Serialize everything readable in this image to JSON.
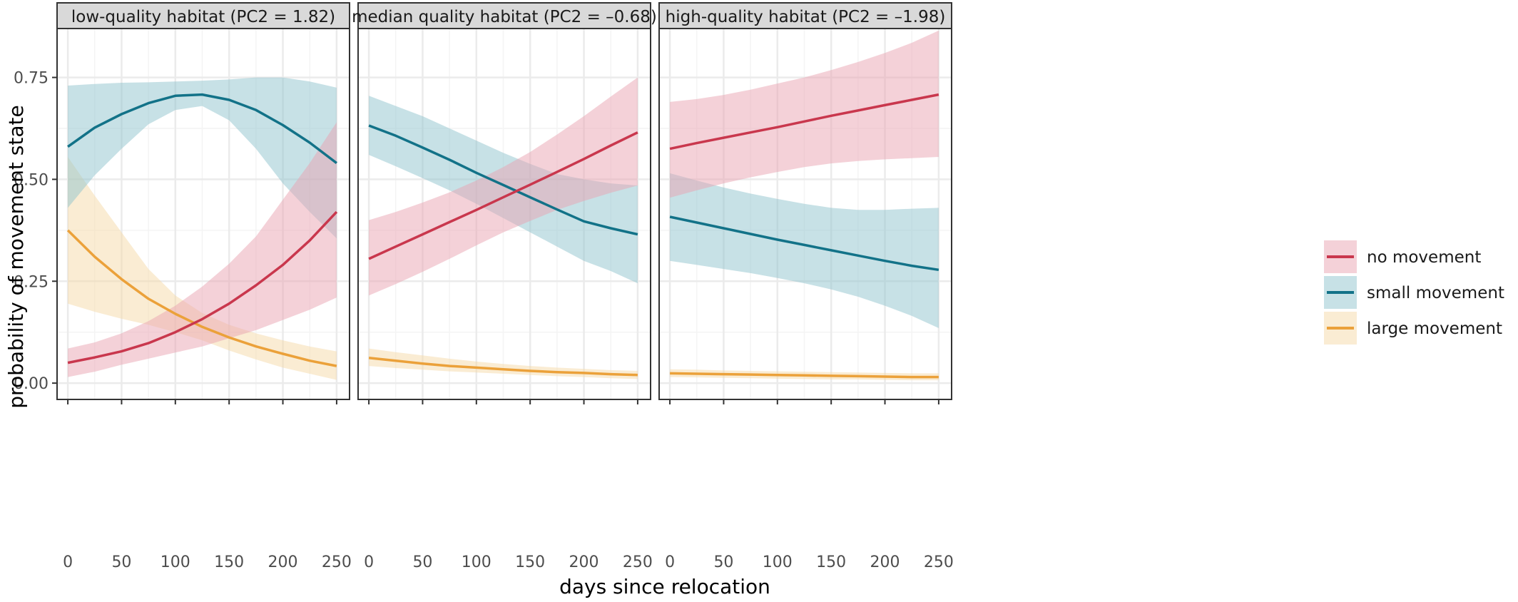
{
  "chart_data": {
    "type": "line",
    "xlabel": "days since relocation",
    "ylabel": "probability of movement state",
    "xlim": [
      -10,
      262
    ],
    "ylim": [
      -0.04,
      0.87
    ],
    "x_ticks": [
      0,
      50,
      100,
      150,
      200,
      250
    ],
    "y_ticks": [
      0.0,
      0.25,
      0.5,
      0.75
    ],
    "y_tick_labels": [
      "0.00",
      "0.25",
      "0.50",
      "0.75"
    ],
    "grid": true,
    "legend_placement": "right",
    "legend": [
      "no movement",
      "small movement",
      "large movement"
    ],
    "colors": {
      "no movement": "#c9374d",
      "small movement": "#127288",
      "large movement": "#eba13a",
      "no movement ribbon": "#eaa3b1",
      "small movement ribbon": "#8fc4ce",
      "large movement ribbon": "#f5d9a8",
      "strip_fill": "#d9d9d9",
      "grid": "#ebebeb"
    },
    "x": [
      0,
      25,
      50,
      75,
      100,
      125,
      150,
      175,
      200,
      225,
      250
    ],
    "panels": [
      {
        "strip": "low-quality habitat (PC2 = 1.82)",
        "series": [
          {
            "name": "no movement",
            "values": [
              0.05,
              0.063,
              0.078,
              0.098,
              0.125,
              0.157,
              0.195,
              0.24,
              0.29,
              0.35,
              0.42
            ],
            "lower": [
              0.015,
              0.028,
              0.045,
              0.06,
              0.075,
              0.09,
              0.11,
              0.13,
              0.155,
              0.18,
              0.21
            ],
            "upper": [
              0.085,
              0.1,
              0.122,
              0.152,
              0.19,
              0.237,
              0.293,
              0.36,
              0.45,
              0.54,
              0.64
            ]
          },
          {
            "name": "small movement",
            "values": [
              0.58,
              0.627,
              0.66,
              0.687,
              0.705,
              0.708,
              0.695,
              0.67,
              0.633,
              0.59,
              0.54
            ],
            "lower": [
              0.43,
              0.51,
              0.575,
              0.635,
              0.67,
              0.68,
              0.645,
              0.575,
              0.49,
              0.42,
              0.355
            ],
            "upper": [
              0.73,
              0.734,
              0.737,
              0.738,
              0.74,
              0.742,
              0.745,
              0.75,
              0.75,
              0.74,
              0.725
            ]
          },
          {
            "name": "large movement",
            "values": [
              0.375,
              0.31,
              0.255,
              0.207,
              0.17,
              0.138,
              0.112,
              0.09,
              0.072,
              0.055,
              0.042
            ],
            "lower": [
              0.195,
              0.175,
              0.158,
              0.143,
              0.125,
              0.105,
              0.08,
              0.058,
              0.038,
              0.023,
              0.008
            ],
            "upper": [
              0.555,
              0.46,
              0.37,
              0.28,
              0.215,
              0.172,
              0.143,
              0.122,
              0.105,
              0.09,
              0.078
            ]
          }
        ]
      },
      {
        "strip": "median quality habitat (PC2 = –0.68)",
        "series": [
          {
            "name": "no movement",
            "values": [
              0.305,
              0.335,
              0.365,
              0.395,
              0.425,
              0.456,
              0.487,
              0.518,
              0.55,
              0.583,
              0.615
            ],
            "lower": [
              0.215,
              0.243,
              0.273,
              0.305,
              0.338,
              0.37,
              0.398,
              0.425,
              0.447,
              0.467,
              0.485
            ],
            "upper": [
              0.4,
              0.42,
              0.443,
              0.468,
              0.497,
              0.53,
              0.567,
              0.61,
              0.655,
              0.703,
              0.75
            ]
          },
          {
            "name": "small movement",
            "values": [
              0.632,
              0.607,
              0.578,
              0.548,
              0.516,
              0.486,
              0.456,
              0.426,
              0.397,
              0.38,
              0.365
            ],
            "lower": [
              0.56,
              0.532,
              0.503,
              0.473,
              0.44,
              0.405,
              0.37,
              0.335,
              0.3,
              0.275,
              0.245
            ],
            "upper": [
              0.705,
              0.68,
              0.655,
              0.625,
              0.595,
              0.565,
              0.538,
              0.513,
              0.5,
              0.49,
              0.485
            ]
          },
          {
            "name": "large movement",
            "values": [
              0.062,
              0.055,
              0.048,
              0.042,
              0.038,
              0.034,
              0.03,
              0.027,
              0.025,
              0.022,
              0.02
            ],
            "lower": [
              0.042,
              0.037,
              0.033,
              0.029,
              0.026,
              0.023,
              0.02,
              0.017,
              0.015,
              0.012,
              0.01
            ],
            "upper": [
              0.085,
              0.076,
              0.068,
              0.06,
              0.053,
              0.047,
              0.042,
              0.038,
              0.035,
              0.032,
              0.03
            ]
          }
        ]
      },
      {
        "strip": "high-quality habitat (PC2 = –1.98)",
        "series": [
          {
            "name": "no movement",
            "values": [
              0.575,
              0.589,
              0.602,
              0.615,
              0.628,
              0.642,
              0.656,
              0.669,
              0.682,
              0.695,
              0.708
            ],
            "lower": [
              0.455,
              0.473,
              0.49,
              0.505,
              0.518,
              0.53,
              0.539,
              0.545,
              0.549,
              0.552,
              0.555
            ],
            "upper": [
              0.69,
              0.697,
              0.707,
              0.72,
              0.735,
              0.75,
              0.768,
              0.788,
              0.81,
              0.835,
              0.865
            ]
          },
          {
            "name": "small movement",
            "values": [
              0.408,
              0.394,
              0.38,
              0.366,
              0.352,
              0.339,
              0.326,
              0.313,
              0.3,
              0.288,
              0.278
            ],
            "lower": [
              0.3,
              0.29,
              0.28,
              0.27,
              0.258,
              0.245,
              0.23,
              0.212,
              0.19,
              0.165,
              0.135
            ],
            "upper": [
              0.515,
              0.497,
              0.48,
              0.465,
              0.452,
              0.44,
              0.43,
              0.425,
              0.425,
              0.428,
              0.43
            ]
          },
          {
            "name": "large movement",
            "values": [
              0.024,
              0.023,
              0.022,
              0.021,
              0.02,
              0.019,
              0.018,
              0.017,
              0.016,
              0.015,
              0.015
            ],
            "lower": [
              0.015,
              0.014,
              0.013,
              0.012,
              0.011,
              0.01,
              0.009,
              0.009,
              0.008,
              0.007,
              0.007
            ],
            "upper": [
              0.034,
              0.033,
              0.031,
              0.03,
              0.029,
              0.028,
              0.027,
              0.026,
              0.025,
              0.024,
              0.024
            ]
          }
        ]
      }
    ]
  }
}
